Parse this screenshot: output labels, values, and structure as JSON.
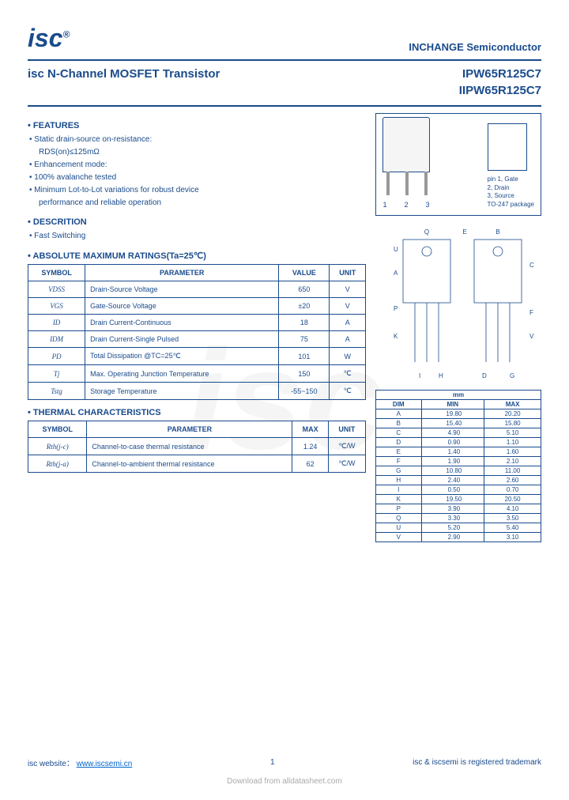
{
  "header": {
    "logo": "isc",
    "company": "INCHANGE Semiconductor",
    "title": "isc N-Channel MOSFET Transistor",
    "part1": "IPW65R125C7",
    "part2": "IIPW65R125C7"
  },
  "features": {
    "head": "• FEATURES",
    "items": [
      "• Static drain-source on-resistance:",
      "RDS(on)≤125mΩ",
      "• Enhancement mode:",
      "• 100% avalanche tested",
      "• Minimum Lot-to-Lot variations for robust device",
      "performance and reliable operation"
    ]
  },
  "description": {
    "head": "• DESCRITION",
    "item": "• Fast Switching"
  },
  "abs_ratings": {
    "head": "• ABSOLUTE MAXIMUM RATINGS(Ta=25℃)",
    "cols": [
      "SYMBOL",
      "PARAMETER",
      "VALUE",
      "UNIT"
    ],
    "rows": [
      [
        "VDSS",
        "Drain-Source Voltage",
        "650",
        "V"
      ],
      [
        "VGS",
        "Gate-Source Voltage",
        "±20",
        "V"
      ],
      [
        "ID",
        "Drain Current-Continuous",
        "18",
        "A"
      ],
      [
        "IDM",
        "Drain Current-Single Pulsed",
        "75",
        "A"
      ],
      [
        "PD",
        "Total Dissipation @TC=25℃",
        "101",
        "W"
      ],
      [
        "Tj",
        "Max. Operating Junction Temperature",
        "150",
        "℃"
      ],
      [
        "Tstg",
        "Storage Temperature",
        "-55~150",
        "℃"
      ]
    ]
  },
  "thermal": {
    "head": "• THERMAL CHARACTERISTICS",
    "cols": [
      "SYMBOL",
      "PARAMETER",
      "MAX",
      "UNIT"
    ],
    "rows": [
      [
        "Rth(j-c)",
        "Channel-to-case thermal resistance",
        "1.24",
        "℃/W"
      ],
      [
        "Rth(j-a)",
        "Channel-to-ambient thermal resistance",
        "62",
        "℃/W"
      ]
    ]
  },
  "package": {
    "pins": [
      "1",
      "2",
      "3"
    ],
    "labels": "pin 1, Gate\n2, Drain\n3, Source\nTO-247 package"
  },
  "dimensions": {
    "head": "mm",
    "cols": [
      "DIM",
      "MIN",
      "MAX"
    ],
    "rows": [
      [
        "A",
        "19.80",
        "20.20"
      ],
      [
        "B",
        "15.40",
        "15.80"
      ],
      [
        "C",
        "4.90",
        "5.10"
      ],
      [
        "D",
        "0.90",
        "1.10"
      ],
      [
        "E",
        "1.40",
        "1.60"
      ],
      [
        "F",
        "1.90",
        "2.10"
      ],
      [
        "G",
        "10.80",
        "11.00"
      ],
      [
        "H",
        "2.40",
        "2.60"
      ],
      [
        "I",
        "0.50",
        "0.70"
      ],
      [
        "K",
        "19.50",
        "20.50"
      ],
      [
        "P",
        "3.90",
        "4.10"
      ],
      [
        "Q",
        "3.30",
        "3.50"
      ],
      [
        "U",
        "5.20",
        "5.40"
      ],
      [
        "V",
        "2.90",
        "3.10"
      ]
    ]
  },
  "footer": {
    "website_label": "isc website：",
    "website_url": "www.iscsemi.cn",
    "page": "1",
    "trademark": "isc & iscsemi is registered trademark",
    "download": "Download from alldatasheet.com"
  }
}
